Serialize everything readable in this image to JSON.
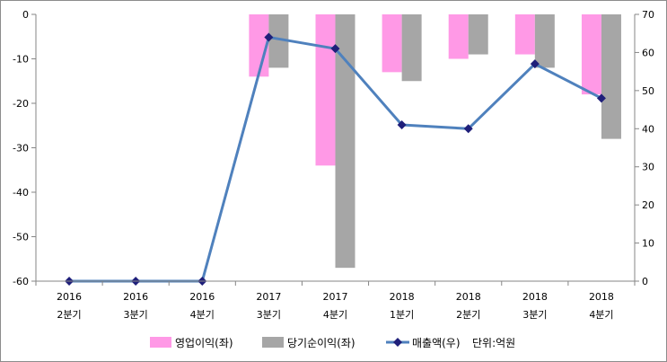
{
  "chart_data": {
    "type": "bar+line",
    "categories": [
      {
        "year": "2016",
        "quarter": "2분기"
      },
      {
        "year": "2016",
        "quarter": "3분기"
      },
      {
        "year": "2016",
        "quarter": "4분기"
      },
      {
        "year": "2017",
        "quarter": "3분기"
      },
      {
        "year": "2017",
        "quarter": "4분기"
      },
      {
        "year": "2018",
        "quarter": "1분기"
      },
      {
        "year": "2018",
        "quarter": "2분기"
      },
      {
        "year": "2018",
        "quarter": "3분기"
      },
      {
        "year": "2018",
        "quarter": "4분기"
      }
    ],
    "series": [
      {
        "name": "영업이익(좌)",
        "type": "bar",
        "axis": "left",
        "color": "#ff99e6",
        "values": [
          0,
          0,
          0,
          -14,
          -34,
          -13,
          -10,
          -9,
          -18
        ]
      },
      {
        "name": "당기순이익(좌)",
        "type": "bar",
        "axis": "left",
        "color": "#a6a6a6",
        "values": [
          0,
          0,
          0,
          -12,
          -57,
          -15,
          -9,
          -12,
          -28
        ]
      },
      {
        "name": "매출액(우)",
        "type": "line",
        "axis": "right",
        "color": "#4f81bd",
        "marker_color": "#1f1f7a",
        "values": [
          0,
          0,
          0,
          64,
          61,
          41,
          40,
          57,
          48
        ]
      }
    ],
    "left_axis": {
      "min": -60,
      "max": 0,
      "step": 10,
      "ticks": [
        "0",
        "-10",
        "-20",
        "-30",
        "-40",
        "-50",
        "-60"
      ]
    },
    "right_axis": {
      "min": 0,
      "max": 70,
      "step": 10,
      "ticks": [
        "70",
        "60",
        "50",
        "40",
        "30",
        "20",
        "10",
        "0"
      ]
    },
    "unit_note": "단위:억원",
    "legend_position": "bottom",
    "grid": false
  }
}
